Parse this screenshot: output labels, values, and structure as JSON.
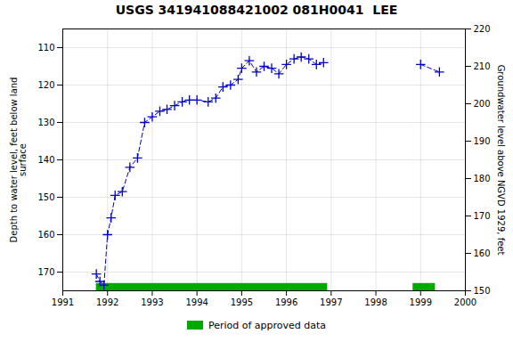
{
  "chart_data": {
    "type": "line",
    "title": "USGS 341941088421002 081H0041  LEE",
    "ylabel": "Depth to water level, feet below land\nsurface",
    "y2label": "Groundwater level above NGVD 1929, feet",
    "xlim": [
      1991,
      2000
    ],
    "xticks": [
      1991,
      1992,
      1993,
      1994,
      1995,
      1996,
      1997,
      1998,
      1999,
      2000
    ],
    "ylim": [
      175,
      105
    ],
    "yticks": [
      110,
      120,
      130,
      140,
      150,
      160,
      170
    ],
    "y2lim": [
      150,
      220
    ],
    "y2ticks": [
      150,
      160,
      170,
      180,
      190,
      200,
      210,
      220
    ],
    "grid": true,
    "legend": "bottom",
    "series": [
      {
        "type": "line",
        "color": "#0000cc",
        "line_style": "dashed",
        "marker": "plus",
        "x": [
          1991.75,
          1991.83,
          1991.92,
          1992.0,
          1992.08,
          1992.17,
          1992.33,
          1992.5,
          1992.67,
          1992.83,
          1993.0,
          1993.17,
          1993.33,
          1993.5,
          1993.67,
          1993.83,
          1994.0,
          1994.25,
          1994.42,
          1994.58,
          1994.75,
          1994.92,
          1995.0,
          1995.17,
          1995.33,
          1995.5,
          1995.67,
          1995.83,
          1996.0,
          1996.17,
          1996.33,
          1996.5,
          1996.67,
          1996.83
        ],
        "values": [
          170.5,
          172.5,
          173.5,
          160.0,
          155.5,
          149.5,
          148.5,
          142.0,
          139.5,
          130.0,
          128.5,
          127.0,
          126.5,
          125.5,
          124.5,
          124.0,
          124.0,
          124.5,
          123.5,
          120.5,
          120.0,
          118.5,
          115.5,
          113.5,
          116.5,
          115.0,
          115.5,
          117.0,
          114.5,
          113.0,
          112.5,
          113.0,
          114.5,
          114.0
        ]
      },
      {
        "type": "line",
        "color": "#0000cc",
        "line_style": "dashed",
        "marker": "plus",
        "axis": "y2",
        "x": [
          1999.0,
          1999.42
        ],
        "values": [
          210.5,
          208.5
        ]
      },
      {
        "type": "span",
        "name": "Period of approved data",
        "color": "#00aa00",
        "periods": [
          [
            1991.75,
            1996.92
          ],
          [
            1998.83,
            1999.33
          ]
        ]
      }
    ]
  }
}
